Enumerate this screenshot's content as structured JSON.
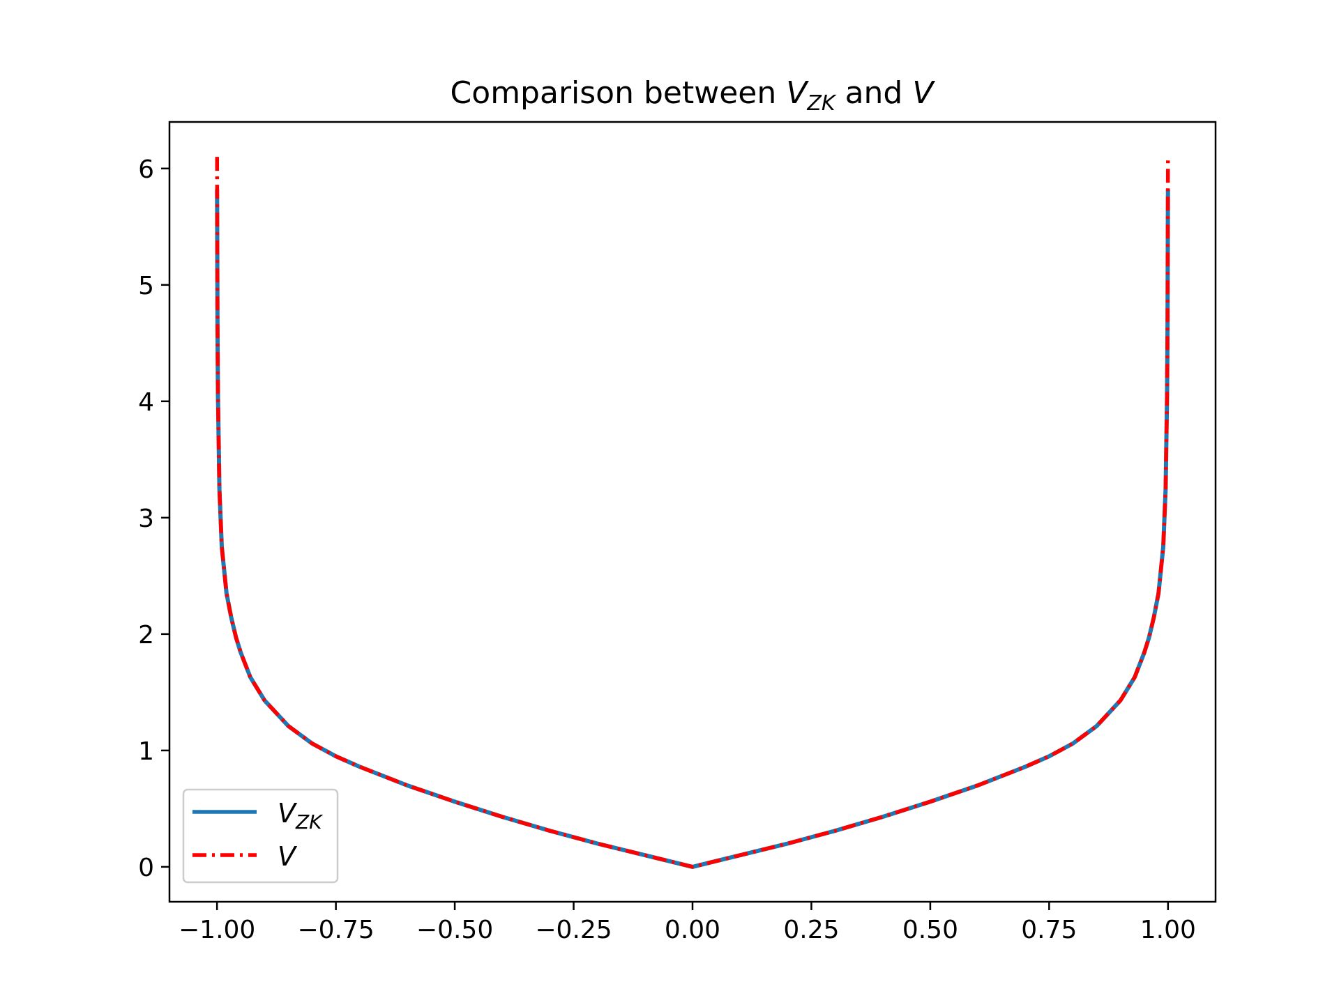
{
  "chart_data": {
    "type": "line",
    "title_main": "Comparison between ",
    "title_sym1": "V",
    "title_sub1": "ZK",
    "title_mid": " and ",
    "title_sym2": "V",
    "xlabel": "",
    "ylabel": "",
    "xlim": [
      -1.1,
      1.1
    ],
    "ylim": [
      -0.3,
      6.4
    ],
    "grid": false,
    "legend_position": "lower-left",
    "x_ticks": [
      -1.0,
      -0.75,
      -0.5,
      -0.25,
      0.0,
      0.25,
      0.5,
      0.75,
      1.0
    ],
    "x_tick_labels": [
      "−1.00",
      "−0.75",
      "−0.50",
      "−0.25",
      "0.00",
      "0.25",
      "0.50",
      "0.75",
      "1.00"
    ],
    "y_ticks": [
      0,
      1,
      2,
      3,
      4,
      5,
      6
    ],
    "y_tick_labels": [
      "0",
      "1",
      "2",
      "3",
      "4",
      "5",
      "6"
    ],
    "x": [
      -0.9999,
      -0.999,
      -0.998,
      -0.995,
      -0.99,
      -0.98,
      -0.97,
      -0.96,
      -0.95,
      -0.93,
      -0.9,
      -0.85,
      -0.8,
      -0.75,
      -0.7,
      -0.6,
      -0.5,
      -0.4,
      -0.3,
      -0.2,
      -0.1,
      0.0,
      0.1,
      0.2,
      0.3,
      0.4,
      0.5,
      0.6,
      0.7,
      0.75,
      0.8,
      0.85,
      0.9,
      0.93,
      0.95,
      0.96,
      0.97,
      0.98,
      0.99,
      0.995,
      0.998,
      0.999,
      0.9999
    ],
    "series": [
      {
        "name_sym": "V",
        "name_sub": "ZK",
        "color": "#1f77b4",
        "style": "solid",
        "y": [
          5.82,
          4.65,
          4.05,
          3.25,
          2.75,
          2.35,
          2.14,
          1.97,
          1.84,
          1.63,
          1.43,
          1.21,
          1.06,
          0.95,
          0.86,
          0.7,
          0.56,
          0.43,
          0.31,
          0.2,
          0.1,
          0.0,
          0.1,
          0.2,
          0.31,
          0.43,
          0.56,
          0.7,
          0.86,
          0.95,
          1.06,
          1.21,
          1.43,
          1.63,
          1.84,
          1.97,
          2.14,
          2.35,
          2.75,
          3.25,
          4.05,
          4.65,
          5.82
        ]
      },
      {
        "name_sym": "V",
        "name_sub": "",
        "color": "#ff0000",
        "style": "dashdot",
        "y": [
          6.1,
          4.65,
          4.05,
          3.25,
          2.75,
          2.35,
          2.14,
          1.97,
          1.84,
          1.63,
          1.43,
          1.21,
          1.06,
          0.95,
          0.86,
          0.7,
          0.56,
          0.43,
          0.31,
          0.2,
          0.1,
          0.0,
          0.1,
          0.2,
          0.31,
          0.43,
          0.56,
          0.7,
          0.86,
          0.95,
          1.06,
          1.21,
          1.43,
          1.63,
          1.84,
          1.97,
          2.14,
          2.35,
          2.75,
          3.25,
          4.05,
          4.65,
          6.1
        ]
      }
    ]
  }
}
